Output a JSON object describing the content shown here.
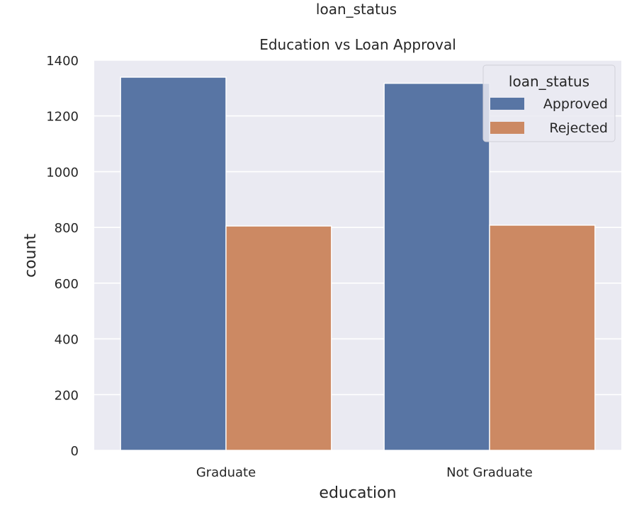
{
  "chart_data": {
    "type": "bar",
    "suptitle": "loan_status",
    "title": "Education vs Loan Approval",
    "xlabel": "education",
    "ylabel": "count",
    "categories": [
      "Graduate",
      "Not Graduate"
    ],
    "ylim": [
      0,
      1400
    ],
    "yticks": [
      0,
      200,
      400,
      600,
      800,
      1000,
      1200,
      1400
    ],
    "grid": true,
    "legend": {
      "title": "loan_status",
      "placement": "top-right"
    },
    "series": [
      {
        "name": "Approved",
        "values": [
          1339,
          1317
        ],
        "color": "#5875a4"
      },
      {
        "name": "Rejected",
        "values": [
          805,
          808
        ],
        "color": "#cc8963"
      }
    ],
    "background_color": "#eaeaf2",
    "grid_color": "#ffffff"
  }
}
